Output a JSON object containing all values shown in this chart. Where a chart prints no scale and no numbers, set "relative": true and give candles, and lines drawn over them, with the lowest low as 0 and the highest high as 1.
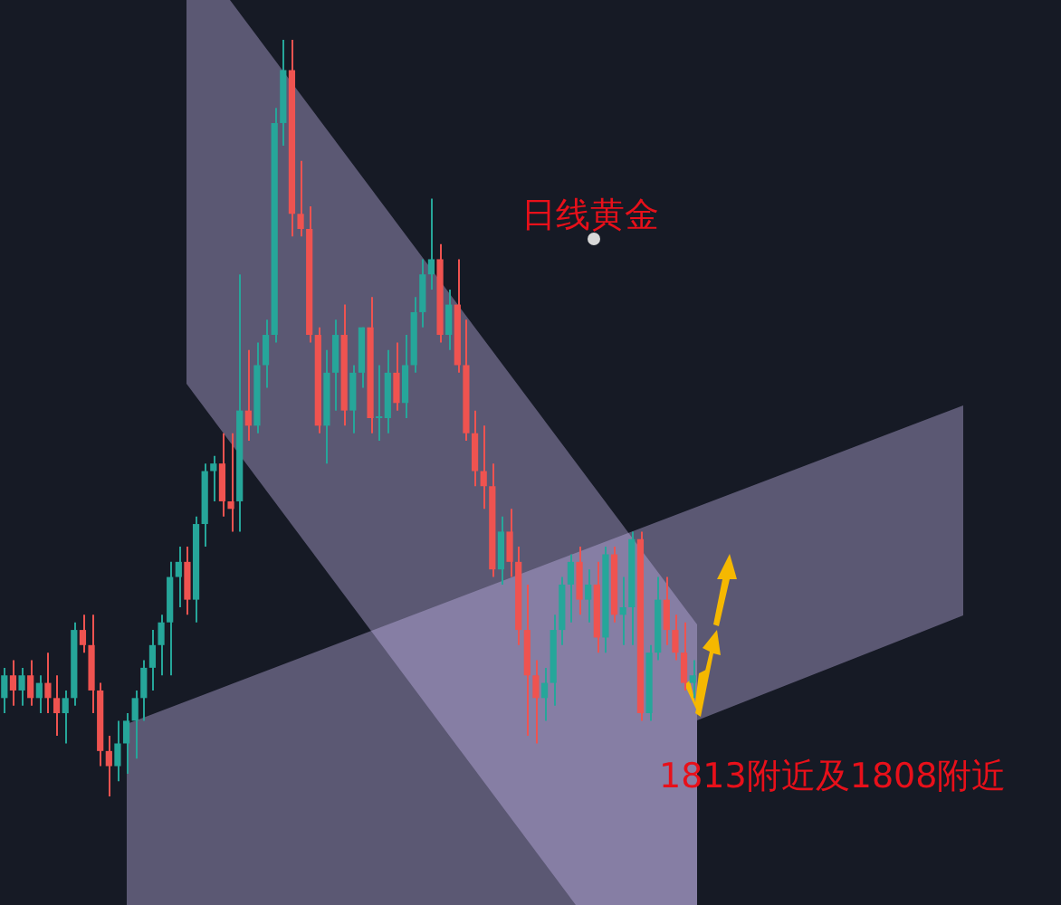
{
  "chart_data": {
    "type": "candlestick",
    "relative": true,
    "categories": [
      null,
      null,
      null,
      null,
      null,
      null,
      null,
      null,
      null,
      null,
      null,
      null,
      null,
      null,
      null,
      null,
      null,
      null,
      null,
      null,
      null,
      null,
      null,
      null,
      null,
      null,
      null,
      null,
      null,
      null,
      null,
      null,
      null,
      null,
      null,
      null,
      null,
      null,
      null,
      null,
      null,
      null,
      null,
      null,
      null,
      null,
      null,
      null,
      null,
      null,
      null,
      null,
      null,
      null,
      null,
      null,
      null,
      null,
      null,
      null,
      null,
      null,
      null,
      null,
      null,
      null,
      null,
      null,
      null,
      null,
      null,
      null,
      null,
      null,
      null,
      null,
      null,
      null,
      null,
      null
    ],
    "ohlc": [
      [
        0.13,
        0.17,
        0.11,
        0.16
      ],
      [
        0.16,
        0.18,
        0.12,
        0.14
      ],
      [
        0.14,
        0.17,
        0.12,
        0.16
      ],
      [
        0.16,
        0.18,
        0.12,
        0.13
      ],
      [
        0.13,
        0.16,
        0.11,
        0.15
      ],
      [
        0.15,
        0.19,
        0.11,
        0.13
      ],
      [
        0.13,
        0.16,
        0.08,
        0.11
      ],
      [
        0.11,
        0.14,
        0.07,
        0.13
      ],
      [
        0.13,
        0.23,
        0.12,
        0.22
      ],
      [
        0.22,
        0.24,
        0.19,
        0.2
      ],
      [
        0.2,
        0.24,
        0.11,
        0.14
      ],
      [
        0.14,
        0.15,
        0.04,
        0.06
      ],
      [
        0.06,
        0.08,
        0,
        0.04
      ],
      [
        0.04,
        0.1,
        0.02,
        0.07
      ],
      [
        0.07,
        0.11,
        0.03,
        0.1
      ],
      [
        0.1,
        0.14,
        0.05,
        0.13
      ],
      [
        0.13,
        0.18,
        0.1,
        0.17
      ],
      [
        0.17,
        0.22,
        0.14,
        0.2
      ],
      [
        0.2,
        0.24,
        0.16,
        0.23
      ],
      [
        0.23,
        0.31,
        0.16,
        0.29
      ],
      [
        0.29,
        0.33,
        0.25,
        0.31
      ],
      [
        0.31,
        0.33,
        0.24,
        0.26
      ],
      [
        0.26,
        0.37,
        0.23,
        0.36
      ],
      [
        0.36,
        0.44,
        0.33,
        0.43
      ],
      [
        0.43,
        0.45,
        0.39,
        0.44
      ],
      [
        0.44,
        0.48,
        0.37,
        0.39
      ],
      [
        0.39,
        0.48,
        0.35,
        0.38
      ],
      [
        0.39,
        0.69,
        0.35,
        0.51
      ],
      [
        0.51,
        0.59,
        0.47,
        0.49
      ],
      [
        0.49,
        0.6,
        0.48,
        0.57
      ],
      [
        0.57,
        0.63,
        0.54,
        0.61
      ],
      [
        0.61,
        0.91,
        0.6,
        0.89
      ],
      [
        0.89,
        1,
        0.86,
        0.96
      ],
      [
        0.96,
        1,
        0.74,
        0.77
      ],
      [
        0.77,
        0.84,
        0.74,
        0.75
      ],
      [
        0.75,
        0.78,
        0.6,
        0.61
      ],
      [
        0.61,
        0.62,
        0.48,
        0.49
      ],
      [
        0.49,
        0.59,
        0.44,
        0.56
      ],
      [
        0.56,
        0.63,
        0.51,
        0.61
      ],
      [
        0.61,
        0.65,
        0.49,
        0.51
      ],
      [
        0.51,
        0.57,
        0.48,
        0.56
      ],
      [
        0.56,
        0.62,
        0.54,
        0.62
      ],
      [
        0.62,
        0.66,
        0.48,
        0.5
      ],
      [
        0.5,
        0.57,
        0.47,
        0.5
      ],
      [
        0.5,
        0.59,
        0.48,
        0.56
      ],
      [
        0.56,
        0.6,
        0.51,
        0.52
      ],
      [
        0.52,
        0.61,
        0.5,
        0.57
      ],
      [
        0.57,
        0.66,
        0.56,
        0.64
      ],
      [
        0.64,
        0.71,
        0.62,
        0.69
      ],
      [
        0.69,
        0.79,
        0.67,
        0.71
      ],
      [
        0.71,
        0.73,
        0.6,
        0.61
      ],
      [
        0.61,
        0.67,
        0.59,
        0.65
      ],
      [
        0.65,
        0.71,
        0.56,
        0.57
      ],
      [
        0.57,
        0.63,
        0.47,
        0.48
      ],
      [
        0.48,
        0.51,
        0.41,
        0.43
      ],
      [
        0.43,
        0.49,
        0.38,
        0.41
      ],
      [
        0.41,
        0.44,
        0.29,
        0.3
      ],
      [
        0.3,
        0.37,
        0.28,
        0.35
      ],
      [
        0.35,
        0.38,
        0.29,
        0.31
      ],
      [
        0.31,
        0.33,
        0.2,
        0.22
      ],
      [
        0.22,
        0.28,
        0.08,
        0.16
      ],
      [
        0.16,
        0.18,
        0.07,
        0.13
      ],
      [
        0.13,
        0.17,
        0.1,
        0.15
      ],
      [
        0.15,
        0.24,
        0.12,
        0.22
      ],
      [
        0.22,
        0.29,
        0.2,
        0.28
      ],
      [
        0.28,
        0.32,
        0.23,
        0.31
      ],
      [
        0.31,
        0.33,
        0.24,
        0.26
      ],
      [
        0.26,
        0.3,
        0.23,
        0.28
      ],
      [
        0.28,
        0.31,
        0.19,
        0.21
      ],
      [
        0.21,
        0.33,
        0.19,
        0.32
      ],
      [
        0.32,
        0.33,
        0.23,
        0.24
      ],
      [
        0.24,
        0.29,
        0.2,
        0.25
      ],
      [
        0.25,
        0.35,
        0.2,
        0.34
      ],
      [
        0.34,
        0.35,
        0.1,
        0.11
      ],
      [
        0.11,
        0.2,
        0.1,
        0.19
      ],
      [
        0.19,
        0.29,
        0.18,
        0.26
      ],
      [
        0.26,
        0.29,
        0.2,
        0.22
      ],
      [
        0.22,
        0.24,
        0.18,
        0.19
      ],
      [
        0.19,
        0.23,
        0.14,
        0.15
      ],
      [
        0.15,
        0.18,
        0.13,
        0.16
      ]
    ],
    "annotations": [
      "日线黄金",
      "1813附近及1808附近"
    ]
  }
}
